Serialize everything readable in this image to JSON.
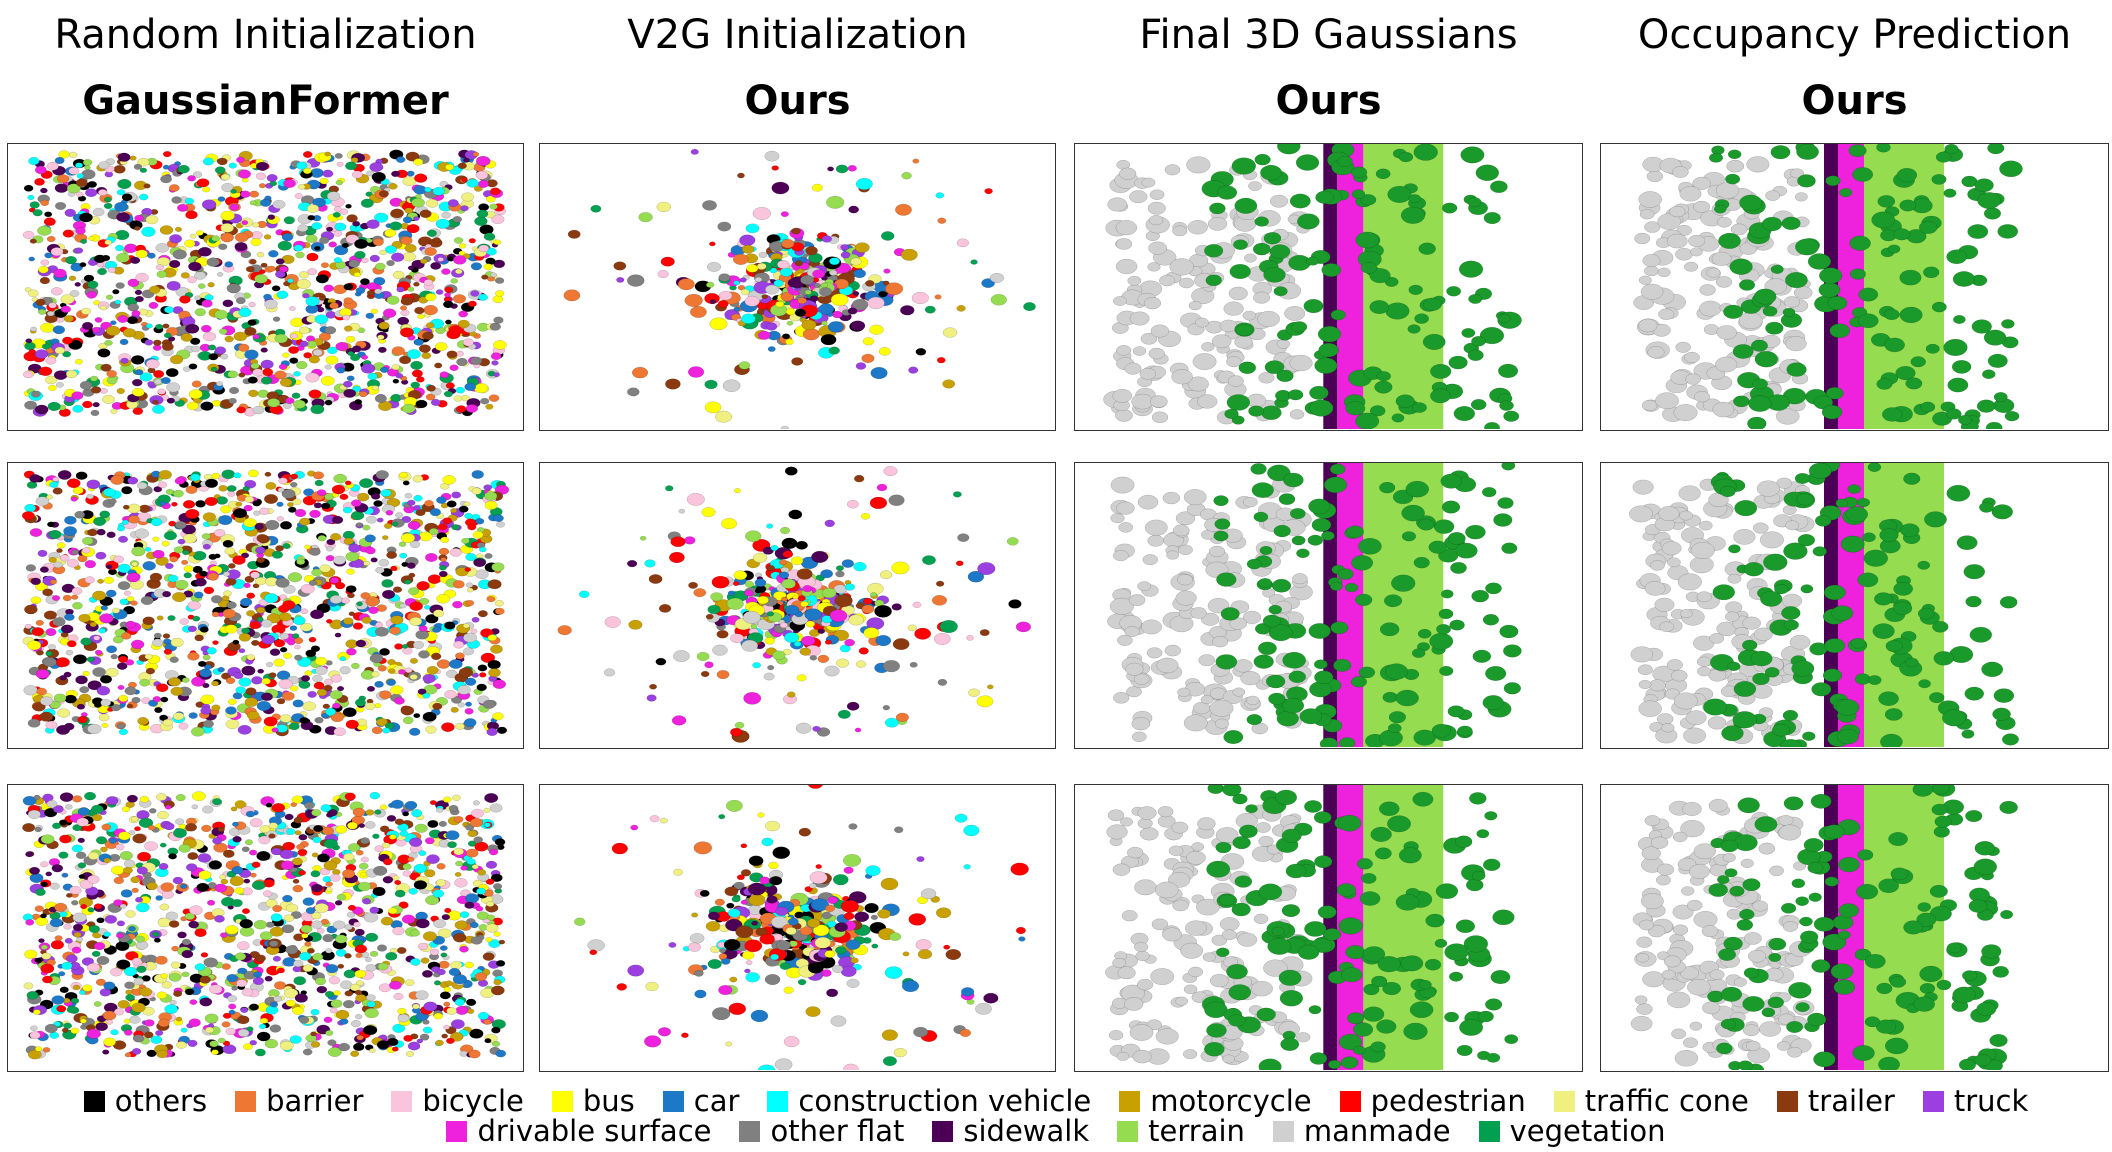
{
  "columns": [
    {
      "title": "Random Initialization",
      "method": "GaussianFormer"
    },
    {
      "title": "V2G Initialization",
      "method": "Ours"
    },
    {
      "title": "Final 3D Gaussians",
      "method": "Ours"
    },
    {
      "title": "Occupancy Prediction",
      "method": "Ours"
    }
  ],
  "legend": {
    "rows": [
      [
        {
          "label": "others",
          "color": "#000000"
        },
        {
          "label": "barrier",
          "color": "#ee7733"
        },
        {
          "label": "bicycle",
          "color": "#f9c4dc"
        },
        {
          "label": "bus",
          "color": "#ffff00"
        },
        {
          "label": "car",
          "color": "#1e78c8"
        },
        {
          "label": "construction vehicle",
          "color": "#00ffff"
        },
        {
          "label": "motorcycle",
          "color": "#c8a000"
        },
        {
          "label": "pedestrian",
          "color": "#ff0000"
        },
        {
          "label": "traffic cone",
          "color": "#f0f080"
        },
        {
          "label": "trailer",
          "color": "#8b3a0f"
        },
        {
          "label": "truck",
          "color": "#9b3fe0"
        }
      ],
      [
        {
          "label": "drivable surface",
          "color": "#ee22dd"
        },
        {
          "label": "other flat",
          "color": "#808080"
        },
        {
          "label": "sidewalk",
          "color": "#4b0055"
        },
        {
          "label": "terrain",
          "color": "#96dc50"
        },
        {
          "label": "manmade",
          "color": "#d0d0d0"
        },
        {
          "label": "vegetation",
          "color": "#00a050"
        }
      ]
    ]
  }
}
